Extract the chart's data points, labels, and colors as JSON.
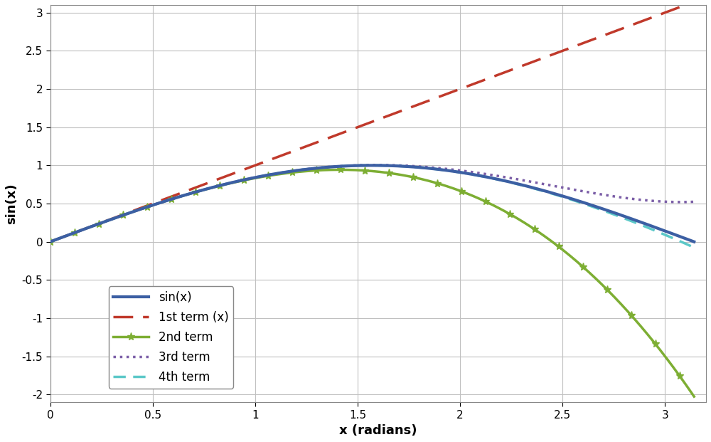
{
  "title": "",
  "xlabel": "x (radians)",
  "ylabel": "sin(x)",
  "xlim": [
    0,
    3.2
  ],
  "ylim": [
    -2.1,
    3.1
  ],
  "yticks": [
    -2,
    -1.5,
    -1,
    -0.5,
    0,
    0.5,
    1,
    1.5,
    2,
    2.5,
    3
  ],
  "xticks": [
    0,
    0.5,
    1,
    1.5,
    2,
    2.5,
    3
  ],
  "sin_color": "#3c5fa3",
  "term1_color": "#c0392b",
  "term2_color": "#7dae33",
  "term3_color": "#7b5ea7",
  "term4_color": "#5bc8c8",
  "background_color": "#ffffff",
  "grid_color": "#c0c0c0",
  "legend_labels": [
    "sin(x)",
    "1st term (x)",
    "2nd term",
    "3rd term",
    "4th term"
  ],
  "figsize": [
    10.0,
    6.21
  ],
  "dpi": 100
}
